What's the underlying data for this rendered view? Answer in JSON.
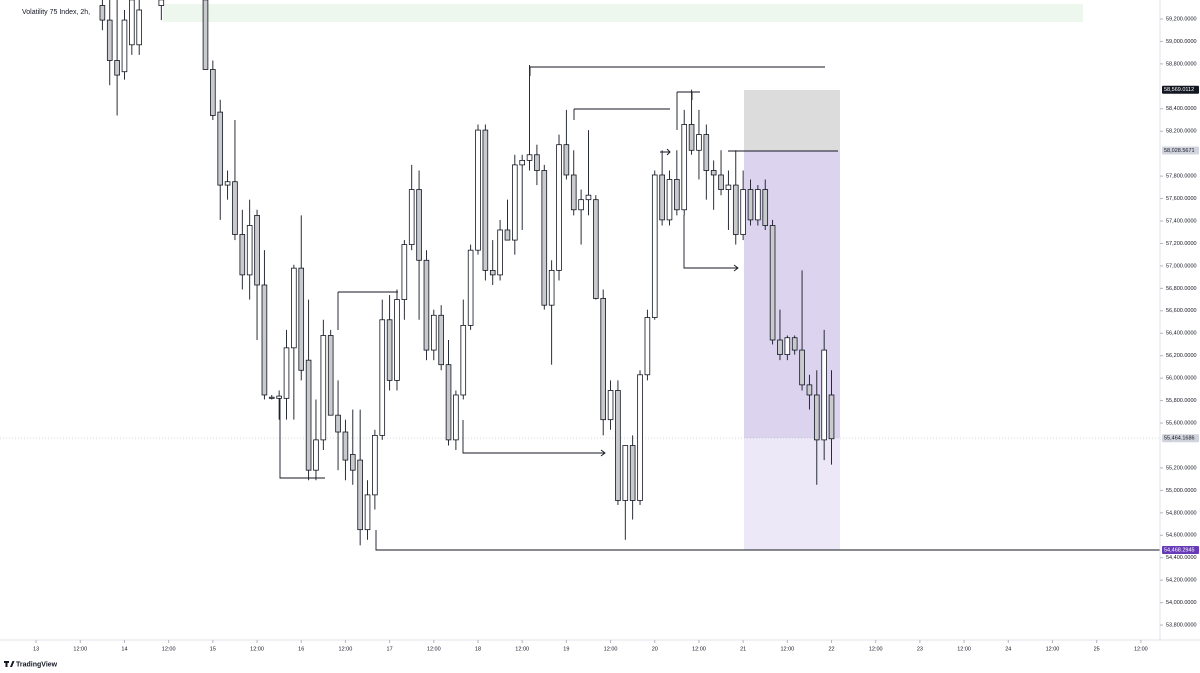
{
  "chart_data": {
    "type": "candlestick",
    "title": "Volatility 75 Index, 2h,",
    "footer": "TradingView",
    "bull_color": "#ffffff",
    "bear_color": "#c9cacd",
    "grid": false,
    "xlim": [
      -9.8,
      305.2
    ],
    "ylim": [
      53667,
      59369
    ],
    "xticks": [
      {
        "value": 0,
        "label": "13"
      },
      {
        "value": 12,
        "label": "12:00"
      },
      {
        "value": 24,
        "label": "14"
      },
      {
        "value": 36,
        "label": "12:00"
      },
      {
        "value": 48,
        "label": "15"
      },
      {
        "value": 60,
        "label": "12:00"
      },
      {
        "value": 72,
        "label": "16"
      },
      {
        "value": 84,
        "label": "12:00"
      },
      {
        "value": 96,
        "label": "17"
      },
      {
        "value": 108,
        "label": "12:00"
      },
      {
        "value": 120,
        "label": "18"
      },
      {
        "value": 132,
        "label": "12:00"
      },
      {
        "value": 144,
        "label": "19"
      },
      {
        "value": 156,
        "label": "12:00"
      },
      {
        "value": 168,
        "label": "20"
      },
      {
        "value": 180,
        "label": "12:00"
      },
      {
        "value": 192,
        "label": "21"
      },
      {
        "value": 204,
        "label": "12:00"
      },
      {
        "value": 216,
        "label": "22"
      },
      {
        "value": 228,
        "label": "12:00"
      },
      {
        "value": 240,
        "label": "23"
      },
      {
        "value": 252,
        "label": "12:00"
      },
      {
        "value": 264,
        "label": "24"
      },
      {
        "value": 276,
        "label": "12:00"
      },
      {
        "value": 288,
        "label": "25"
      },
      {
        "value": 300,
        "label": "12:00"
      }
    ],
    "yticks": [
      {
        "value": 59200,
        "label": "59,200.0000"
      },
      {
        "value": 59000,
        "label": "59,000.0000"
      },
      {
        "value": 58800,
        "label": "58,800.0000"
      },
      {
        "value": 58400,
        "label": "58,400.0000"
      },
      {
        "value": 58200,
        "label": "58,200.0000"
      },
      {
        "value": 57800,
        "label": "57,800.0000"
      },
      {
        "value": 57600,
        "label": "57,600.0000"
      },
      {
        "value": 57400,
        "label": "57,400.0000"
      },
      {
        "value": 57200,
        "label": "57,200.0000"
      },
      {
        "value": 57000,
        "label": "57,000.0000"
      },
      {
        "value": 56800,
        "label": "56,800.0000"
      },
      {
        "value": 56600,
        "label": "56,600.0000"
      },
      {
        "value": 56400,
        "label": "56,400.0000"
      },
      {
        "value": 56200,
        "label": "56,200.0000"
      },
      {
        "value": 56000,
        "label": "56,000.0000"
      },
      {
        "value": 55800,
        "label": "55,800.0000"
      },
      {
        "value": 55600,
        "label": "55,600.0000"
      },
      {
        "value": 55200,
        "label": "55,200.0000"
      },
      {
        "value": 55000,
        "label": "55,000.0000"
      },
      {
        "value": 54800,
        "label": "54,800.0000"
      },
      {
        "value": 54600,
        "label": "54,600.0000"
      },
      {
        "value": 54400,
        "label": "54,400.0000"
      },
      {
        "value": 54200,
        "label": "54,200.0000"
      },
      {
        "value": 54000,
        "label": "54,000.0000"
      },
      {
        "value": 53800,
        "label": "53,800.0000"
      }
    ],
    "price_labels": [
      {
        "value": 58569.0112,
        "label": "58,569.0112",
        "color": "#131722"
      },
      {
        "value": 58028.5671,
        "label": "58,028.5671",
        "color": "#d1d4dc"
      },
      {
        "value": 55464.1686,
        "label": "55,464.1686",
        "color": "#d1d4dc"
      },
      {
        "value": 54468.2945,
        "label": "54,468.2945",
        "color": "#673ab7"
      }
    ],
    "x": [
      18,
      20,
      22,
      24,
      26,
      28,
      34,
      46,
      48,
      50,
      52,
      54,
      56,
      58,
      60,
      62,
      64,
      66,
      68,
      70,
      72,
      74,
      76,
      78,
      80,
      82,
      84,
      86,
      88,
      90,
      92,
      94,
      96,
      98,
      100,
      102,
      104,
      106,
      108,
      110,
      112,
      114,
      116,
      118,
      120,
      122,
      124,
      126,
      128,
      130,
      132,
      134,
      136,
      138,
      140,
      142,
      144,
      146,
      148,
      150,
      152,
      154,
      156,
      158,
      160,
      162,
      164,
      166,
      168,
      170,
      172,
      174,
      176,
      178,
      180,
      182,
      184,
      186,
      188,
      190,
      192,
      194,
      196,
      198,
      200,
      202,
      204,
      206,
      208,
      210,
      212,
      214,
      216
    ],
    "ohlc": [
      [
        59320,
        59370,
        59100,
        59190
      ],
      [
        59190,
        59370,
        58610,
        58830
      ],
      [
        58830,
        59370,
        58340,
        58700
      ],
      [
        58730,
        59280,
        58660,
        59190
      ],
      [
        58970,
        59370,
        58880,
        59370
      ],
      [
        58970,
        59370,
        58880,
        59280
      ],
      [
        59320,
        59370,
        59190,
        59370
      ],
      [
        59370,
        59370,
        58750,
        58750
      ],
      [
        58750,
        58830,
        58300,
        58340
      ],
      [
        58370,
        58480,
        57410,
        57720
      ],
      [
        57720,
        57850,
        57590,
        57750
      ],
      [
        57750,
        58300,
        57230,
        57280
      ],
      [
        57280,
        57500,
        56790,
        56920
      ],
      [
        56920,
        57590,
        56700,
        57360
      ],
      [
        57450,
        57500,
        56340,
        56830
      ],
      [
        56830,
        57140,
        55810,
        55850
      ],
      [
        55830,
        55850,
        55810,
        55820
      ],
      [
        55820,
        55890,
        55630,
        55840
      ],
      [
        55820,
        56430,
        55630,
        56270
      ],
      [
        56270,
        57010,
        55630,
        56980
      ],
      [
        56980,
        57450,
        55980,
        56070
      ],
      [
        56160,
        56700,
        55090,
        55180
      ],
      [
        55180,
        55810,
        55090,
        55450
      ],
      [
        55450,
        56520,
        55360,
        56380
      ],
      [
        56380,
        56430,
        55670,
        55670
      ],
      [
        55670,
        55980,
        55180,
        55520
      ],
      [
        55520,
        55630,
        55090,
        55270
      ],
      [
        55320,
        55720,
        55050,
        55180
      ],
      [
        55270,
        55720,
        54510,
        54650
      ],
      [
        54650,
        55090,
        54560,
        54960
      ],
      [
        54960,
        55540,
        54830,
        55490
      ],
      [
        55490,
        56700,
        55450,
        56520
      ],
      [
        56520,
        56740,
        55890,
        55980
      ],
      [
        55980,
        56790,
        55890,
        56700
      ],
      [
        56700,
        57230,
        56520,
        57190
      ],
      [
        57190,
        57900,
        57140,
        57680
      ],
      [
        57680,
        57850,
        56520,
        57050
      ],
      [
        57050,
        57140,
        56160,
        56250
      ],
      [
        56250,
        56610,
        56160,
        56560
      ],
      [
        56560,
        56650,
        56070,
        56120
      ],
      [
        56120,
        56340,
        55400,
        55450
      ],
      [
        55450,
        55890,
        55360,
        55850
      ],
      [
        55850,
        56700,
        55810,
        56470
      ],
      [
        56470,
        57190,
        56430,
        57140
      ],
      [
        57140,
        58260,
        57100,
        58210
      ],
      [
        58210,
        58260,
        56870,
        56960
      ],
      [
        56960,
        57230,
        56830,
        56920
      ],
      [
        56920,
        57410,
        56870,
        57320
      ],
      [
        57320,
        57590,
        57230,
        57230
      ],
      [
        57230,
        57990,
        57100,
        57900
      ],
      [
        57900,
        57990,
        57320,
        57940
      ],
      [
        57940,
        58790,
        57850,
        57990
      ],
      [
        57990,
        58080,
        57720,
        57850
      ],
      [
        57850,
        57900,
        56610,
        56650
      ],
      [
        56650,
        57050,
        56120,
        56960
      ],
      [
        56960,
        58170,
        56870,
        58080
      ],
      [
        58080,
        58390,
        57770,
        57810
      ],
      [
        57810,
        58030,
        57450,
        57500
      ],
      [
        57500,
        57680,
        57190,
        57590
      ],
      [
        57590,
        58210,
        57450,
        57630
      ],
      [
        57590,
        57630,
        56700,
        56710
      ],
      [
        56710,
        56790,
        55490,
        55630
      ],
      [
        55630,
        55980,
        55540,
        55890
      ],
      [
        55890,
        55980,
        54870,
        54910
      ],
      [
        54910,
        55400,
        54560,
        55400
      ],
      [
        55400,
        55490,
        54740,
        54910
      ],
      [
        54910,
        56070,
        54870,
        56030
      ],
      [
        56030,
        56610,
        55980,
        56540
      ],
      [
        56540,
        57850,
        56520,
        57810
      ],
      [
        57810,
        58030,
        57360,
        57410
      ],
      [
        57410,
        57850,
        57360,
        57770
      ],
      [
        57770,
        58030,
        57450,
        57500
      ],
      [
        57500,
        58390,
        57450,
        58260
      ],
      [
        58260,
        58570,
        57990,
        58030
      ],
      [
        58030,
        58390,
        57770,
        58170
      ],
      [
        58170,
        58260,
        57590,
        57850
      ],
      [
        57850,
        57940,
        57500,
        57810
      ],
      [
        57810,
        58030,
        57630,
        57680
      ],
      [
        57680,
        57850,
        57320,
        57720
      ],
      [
        57720,
        58030,
        57190,
        57280
      ],
      [
        57280,
        57850,
        57230,
        57680
      ],
      [
        57680,
        57770,
        57360,
        57410
      ],
      [
        57410,
        57720,
        57360,
        57680
      ],
      [
        57680,
        57770,
        57320,
        57360
      ],
      [
        57360,
        57410,
        56300,
        56340
      ],
      [
        56340,
        56610,
        56160,
        56210
      ],
      [
        56210,
        56380,
        56160,
        56360
      ],
      [
        56360,
        56380,
        56210,
        56250
      ],
      [
        56250,
        56960,
        55890,
        55940
      ],
      [
        55940,
        56030,
        55720,
        55850
      ],
      [
        55850,
        56070,
        55050,
        55450
      ],
      [
        55450,
        56430,
        55270,
        56250
      ],
      [
        55850,
        56070,
        55230,
        55460
      ]
    ]
  }
}
